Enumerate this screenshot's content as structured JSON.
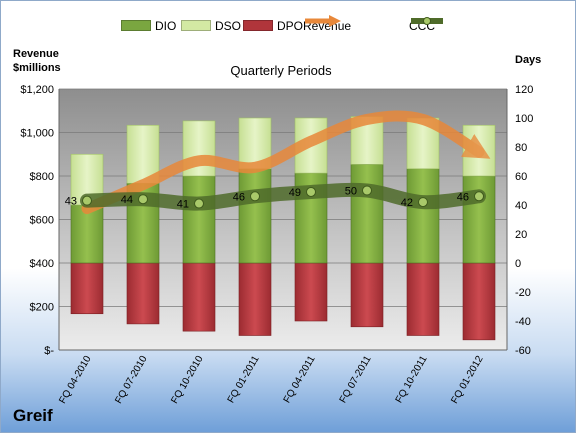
{
  "chart_data": {
    "type": "bar",
    "title": "Quarterly Periods",
    "categories": [
      "FQ 04-2010",
      "FQ 07-2010",
      "FQ 10-2010",
      "FQ 01-2011",
      "FQ 04-2011",
      "FQ 07-2011",
      "FQ 10-2011",
      "FQ 01-2012"
    ],
    "series": [
      {
        "name": "DIO",
        "axis": "right",
        "stacked": true,
        "values": [
          40,
          55,
          60,
          65,
          62,
          68,
          65,
          60
        ],
        "color": "#7aa640"
      },
      {
        "name": "DSO",
        "axis": "right",
        "stacked": true,
        "values": [
          35,
          40,
          38,
          35,
          38,
          33,
          35,
          35
        ],
        "color": "#d3e9a3"
      },
      {
        "name": "DPO",
        "axis": "right",
        "stacked": false,
        "negative": true,
        "values": [
          -35,
          -42,
          -47,
          -50,
          -40,
          -44,
          -50,
          -53
        ],
        "color": "#b0353b"
      },
      {
        "name": "Revenue",
        "axis": "left",
        "type": "line",
        "values": [
          650,
          760,
          870,
          840,
          960,
          1060,
          1060,
          910
        ],
        "color": "#e8883a"
      },
      {
        "name": "CCC",
        "axis": "right",
        "type": "line",
        "values": [
          43,
          44,
          41,
          46,
          49,
          50,
          42,
          46
        ],
        "color": "#4f6b2a"
      }
    ],
    "ccc_labels": [
      "43",
      "44",
      "41",
      "46",
      "49",
      "50",
      "42",
      "46"
    ],
    "left_axis": {
      "title": "Revenue\n$millions",
      "ylim": [
        0,
        1200
      ],
      "ticks": [
        "$-",
        "$200",
        "$400",
        "$600",
        "$800",
        "$1,000",
        "$1,200"
      ]
    },
    "right_axis": {
      "title": "Days",
      "ylim": [
        -60,
        120
      ],
      "ticks": [
        "-60",
        "-40",
        "-20",
        "0",
        "20",
        "40",
        "60",
        "80",
        "100",
        "120"
      ]
    },
    "grid": true,
    "legend": "top"
  },
  "brand": "Greif"
}
